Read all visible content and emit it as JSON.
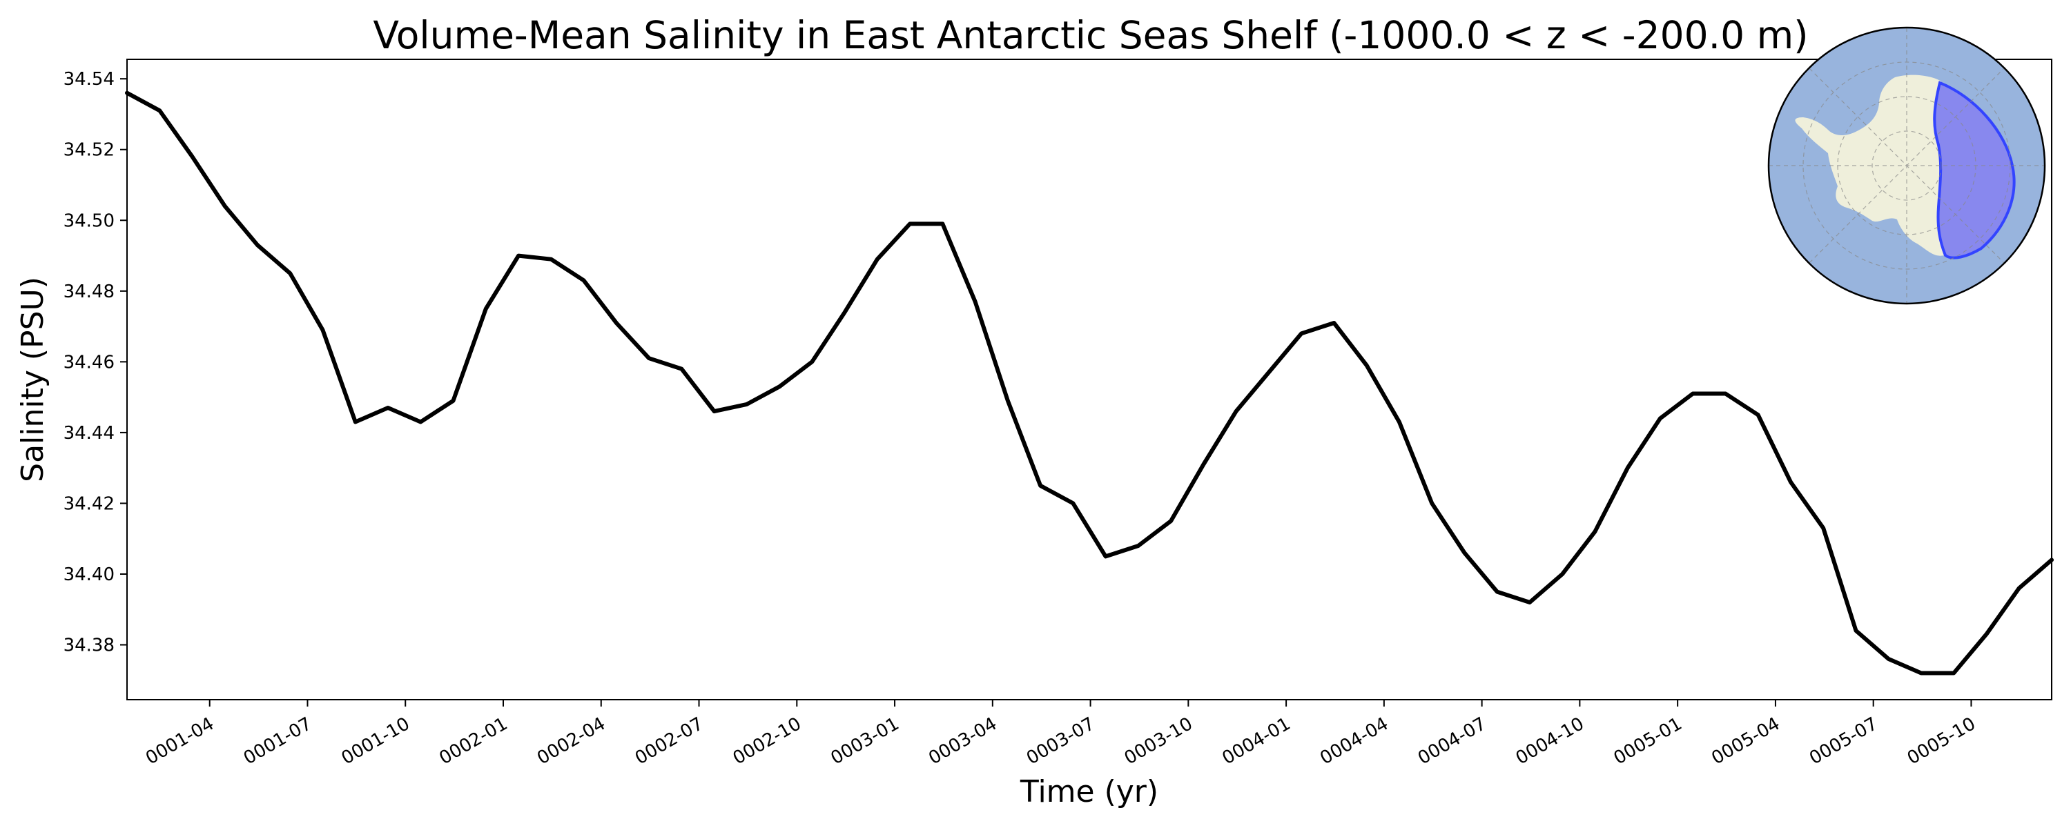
{
  "chart_data": {
    "type": "line",
    "title": "Volume-Mean Salinity in East Antarctic Seas Shelf (-1000.0 < z < -200.0 m)",
    "xlabel": "Time (yr)",
    "ylabel": "Salinity (PSU)",
    "x_tick_labels": [
      "0001-04",
      "0001-07",
      "0001-10",
      "0002-01",
      "0002-04",
      "0002-07",
      "0002-10",
      "0003-01",
      "0003-04",
      "0003-07",
      "0003-10",
      "0004-01",
      "0004-04",
      "0004-07",
      "0004-10",
      "0005-01",
      "0005-04",
      "0005-07",
      "0005-10"
    ],
    "y_ticks": [
      34.38,
      34.4,
      34.42,
      34.44,
      34.46,
      34.48,
      34.5,
      34.52,
      34.54
    ],
    "y_tick_labels": [
      "34.38",
      "34.40",
      "34.42",
      "34.44",
      "34.46",
      "34.48",
      "34.50",
      "34.52",
      "34.54"
    ],
    "ylim": [
      34.3645,
      34.5455
    ],
    "xlim": [
      "0001-01-15",
      "0005-12-15"
    ],
    "grid": false,
    "series": [
      {
        "color": "#000000",
        "x": [
          "0001-01",
          "0001-02",
          "0001-03",
          "0001-04",
          "0001-05",
          "0001-06",
          "0001-07",
          "0001-08",
          "0001-09",
          "0001-10",
          "0001-11",
          "0001-12",
          "0002-01",
          "0002-02",
          "0002-03",
          "0002-04",
          "0002-05",
          "0002-06",
          "0002-07",
          "0002-08",
          "0002-09",
          "0002-10",
          "0002-11",
          "0002-12",
          "0003-01",
          "0003-02",
          "0003-03",
          "0003-04",
          "0003-05",
          "0003-06",
          "0003-07",
          "0003-08",
          "0003-09",
          "0003-10",
          "0003-11",
          "0003-12",
          "0004-01",
          "0004-02",
          "0004-03",
          "0004-04",
          "0004-05",
          "0004-06",
          "0004-07",
          "0004-08",
          "0004-09",
          "0004-10",
          "0004-11",
          "0004-12",
          "0005-01",
          "0005-02",
          "0005-03",
          "0005-04",
          "0005-05",
          "0005-06",
          "0005-07",
          "0005-08",
          "0005-09",
          "0005-10",
          "0005-11",
          "0005-12"
        ],
        "values": [
          34.536,
          34.531,
          34.518,
          34.504,
          34.493,
          34.485,
          34.469,
          34.443,
          34.447,
          34.443,
          34.449,
          34.475,
          34.49,
          34.489,
          34.483,
          34.471,
          34.461,
          34.458,
          34.446,
          34.448,
          34.453,
          34.46,
          34.474,
          34.489,
          34.499,
          34.499,
          34.477,
          34.449,
          34.425,
          34.42,
          34.405,
          34.408,
          34.415,
          34.431,
          34.446,
          34.457,
          34.468,
          34.471,
          34.459,
          34.443,
          34.42,
          34.406,
          34.395,
          34.392,
          34.4,
          34.412,
          34.43,
          34.444,
          34.451,
          34.451,
          34.445,
          34.426,
          34.413,
          34.384,
          34.376,
          34.372,
          34.372,
          34.383,
          34.396,
          34.404
        ]
      }
    ],
    "inset": {
      "type": "polar-map",
      "position": "top-right",
      "ocean_color": "#98b4dd",
      "land_color": "#efefdb",
      "region_fill": "#8888ee",
      "region_stroke": "#3344ff"
    }
  }
}
